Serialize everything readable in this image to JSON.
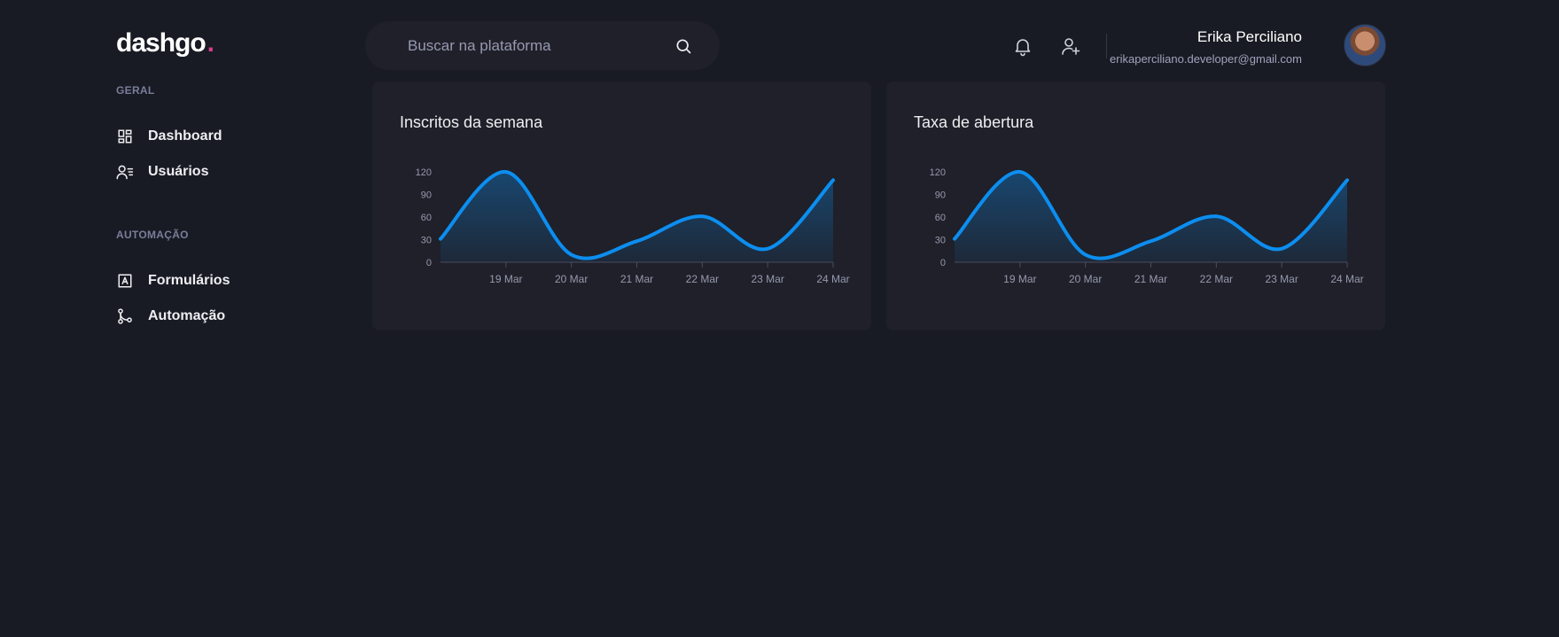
{
  "brand": {
    "name": "dashgo",
    "dot": "."
  },
  "search": {
    "placeholder": "Buscar na plataforma",
    "value": ""
  },
  "header": {
    "notification_icon": "bell-icon",
    "add_user_icon": "user-plus-icon",
    "user": {
      "name": "Erika Perciliano",
      "email": "erikaperciliano.developer@gmail.com"
    }
  },
  "sidebar": {
    "sections": [
      {
        "title": "GERAL",
        "items": [
          {
            "label": "Dashboard",
            "icon": "dashboard-icon"
          },
          {
            "label": "Usuários",
            "icon": "users-icon"
          }
        ]
      },
      {
        "title": "AUTOMAÇÃO",
        "items": [
          {
            "label": "Formulários",
            "icon": "form-icon"
          },
          {
            "label": "Automação",
            "icon": "git-merge-icon"
          }
        ]
      }
    ]
  },
  "colors": {
    "accent": "#0c8ef0",
    "pink": "#d53f8c",
    "bg": "#181b23",
    "card": "#1f2029"
  },
  "chart_data": [
    {
      "type": "area",
      "title": "Inscritos da semana",
      "x": [
        "2021-03-18",
        "2021-03-19",
        "2021-03-20",
        "2021-03-21",
        "2021-03-22",
        "2021-03-23",
        "2021-03-24"
      ],
      "values": [
        31,
        120,
        10,
        28,
        61,
        18,
        109
      ],
      "x_ticks": [
        "19 Mar",
        "20 Mar",
        "21 Mar",
        "22 Mar",
        "23 Mar",
        "24 Mar"
      ],
      "y_ticks": [
        0,
        30,
        60,
        90,
        120
      ],
      "ylim": [
        0,
        120
      ],
      "grid": false,
      "legend": "none"
    },
    {
      "type": "area",
      "title": "Taxa de abertura",
      "x": [
        "2021-03-18",
        "2021-03-19",
        "2021-03-20",
        "2021-03-21",
        "2021-03-22",
        "2021-03-23",
        "2021-03-24"
      ],
      "values": [
        31,
        120,
        10,
        28,
        61,
        18,
        109
      ],
      "x_ticks": [
        "19 Mar",
        "20 Mar",
        "21 Mar",
        "22 Mar",
        "23 Mar",
        "24 Mar"
      ],
      "y_ticks": [
        0,
        30,
        60,
        90,
        120
      ],
      "ylim": [
        0,
        120
      ],
      "grid": false,
      "legend": "none"
    }
  ]
}
